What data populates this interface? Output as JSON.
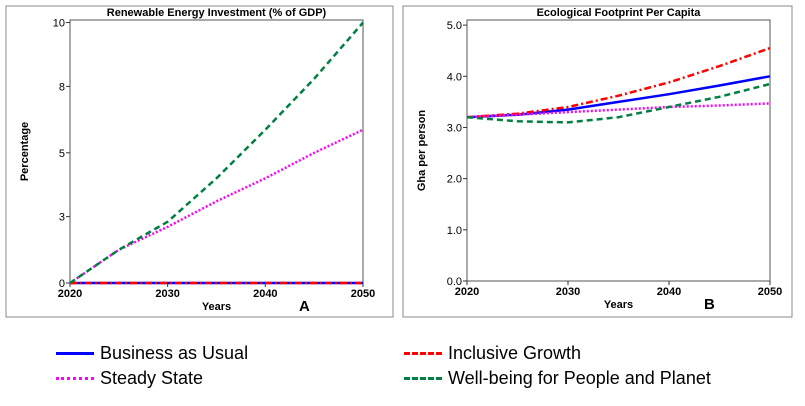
{
  "legend": [
    {
      "id": "bau",
      "label": "Business as Usual",
      "color": "#0000ff",
      "dash": "solid"
    },
    {
      "id": "ig",
      "label": "Inclusive Growth",
      "color": "#ff0000",
      "dash": "dashdot"
    },
    {
      "id": "ss",
      "label": "Steady State",
      "color": "#ff00ff",
      "dash": "dotted"
    },
    {
      "id": "wb",
      "label": "Well-being for People and Planet",
      "color": "#008040",
      "dash": "dashed"
    }
  ],
  "chart_data": [
    {
      "type": "line",
      "panel_label": "A",
      "title": "Renewable Energy Investment (% of GDP)",
      "xlabel": "Years",
      "ylabel": "Percentage",
      "xlim": [
        2020,
        2050
      ],
      "ylim": [
        0,
        10.3
      ],
      "xticks": [
        2020,
        2030,
        2040,
        2050
      ],
      "yticks": [
        {
          "value": 0,
          "label": "0"
        },
        {
          "value": 2.6,
          "label": "3"
        },
        {
          "value": 5.1,
          "label": "5"
        },
        {
          "value": 7.7,
          "label": "8"
        },
        {
          "value": 10.2,
          "label": "10"
        }
      ],
      "grid": false,
      "x": [
        2020,
        2025,
        2030,
        2035,
        2040,
        2045,
        2050
      ],
      "series": [
        {
          "ref": "bau",
          "values": [
            0,
            0,
            0,
            0,
            0,
            0,
            0
          ]
        },
        {
          "ref": "ig",
          "values": [
            0,
            0,
            0,
            0,
            0,
            0,
            0
          ]
        },
        {
          "ref": "ss",
          "values": [
            0,
            1.3,
            2.2,
            3.2,
            4.1,
            5.1,
            6.0
          ]
        },
        {
          "ref": "wb",
          "values": [
            0,
            1.3,
            2.4,
            4.1,
            6.0,
            8.0,
            10.2
          ]
        }
      ]
    },
    {
      "type": "line",
      "panel_label": "B",
      "title": "Ecological Footprint Per Capita",
      "xlabel": "Years",
      "ylabel": "Gha per person",
      "xlim": [
        2020,
        2050
      ],
      "ylim": [
        0,
        5.1
      ],
      "xticks": [
        2020,
        2030,
        2040,
        2050
      ],
      "yticks": [
        {
          "value": 0,
          "label": "0.0"
        },
        {
          "value": 1,
          "label": "1.0"
        },
        {
          "value": 2,
          "label": "2.0"
        },
        {
          "value": 3,
          "label": "3.0"
        },
        {
          "value": 4,
          "label": "4.0"
        },
        {
          "value": 5,
          "label": "5.0"
        }
      ],
      "grid": false,
      "x": [
        2020,
        2025,
        2030,
        2035,
        2040,
        2045,
        2050
      ],
      "series": [
        {
          "ref": "bau",
          "values": [
            3.2,
            3.25,
            3.35,
            3.5,
            3.65,
            3.82,
            4.0
          ]
        },
        {
          "ref": "ig",
          "values": [
            3.2,
            3.27,
            3.4,
            3.62,
            3.88,
            4.2,
            4.55
          ]
        },
        {
          "ref": "ss",
          "values": [
            3.2,
            3.25,
            3.3,
            3.35,
            3.4,
            3.43,
            3.47
          ]
        },
        {
          "ref": "wb",
          "values": [
            3.2,
            3.12,
            3.1,
            3.2,
            3.4,
            3.6,
            3.85
          ]
        }
      ]
    }
  ]
}
